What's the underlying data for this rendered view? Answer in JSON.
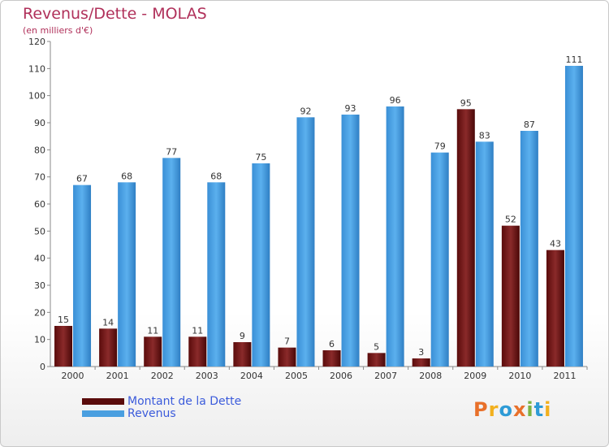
{
  "chart_data": {
    "type": "bar",
    "title": "Revenus/Dette - MOLAS",
    "subtitle": "(en milliers d'€)",
    "categories": [
      "2000",
      "2001",
      "2002",
      "2003",
      "2004",
      "2005",
      "2006",
      "2007",
      "2008",
      "2009",
      "2010",
      "2011"
    ],
    "series": [
      {
        "name": "Montant de la Dette",
        "color": "#7a1a1a",
        "values": [
          15,
          14,
          11,
          11,
          9,
          7,
          6,
          5,
          3,
          95,
          52,
          43
        ]
      },
      {
        "name": "Revenus",
        "color": "#4a9fe0",
        "values": [
          67,
          68,
          77,
          68,
          75,
          92,
          93,
          96,
          79,
          83,
          87,
          111
        ]
      }
    ],
    "ylim": [
      0,
      120
    ],
    "yticks": [
      0,
      10,
      20,
      30,
      40,
      50,
      60,
      70,
      80,
      90,
      100,
      110,
      120
    ],
    "grid": false,
    "legend": "bottom-left"
  },
  "logo": {
    "text": "Proxiti",
    "colors": [
      "#e8702a",
      "#f2b01e",
      "#2e9bd6",
      "#e8702a",
      "#7cb342",
      "#2e9bd6",
      "#f2b01e"
    ]
  }
}
